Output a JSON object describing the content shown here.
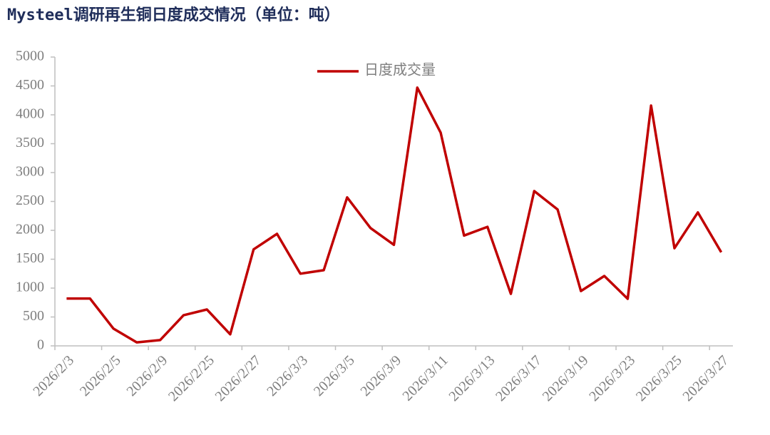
{
  "chart_data": {
    "type": "line",
    "title": "Mysteel调研再生铜日度成交情况（单位：吨）",
    "categories": [
      "2026/2/3",
      null,
      "2026/2/5",
      null,
      "2026/2/9",
      null,
      "2026/2/25",
      null,
      "2026/2/27",
      null,
      "2026/3/3",
      null,
      "2026/3/5",
      null,
      "2026/3/9",
      null,
      "2026/3/11",
      null,
      "2026/3/13",
      null,
      "2026/3/17",
      null,
      "2026/3/19",
      null,
      "2026/3/23",
      null,
      "2026/3/25",
      null,
      "2026/3/27"
    ],
    "series": [
      {
        "name": "日度成交量",
        "color": "#c00000",
        "values": [
          820,
          820,
          300,
          60,
          100,
          530,
          630,
          200,
          1670,
          1940,
          1250,
          1310,
          2570,
          2040,
          1750,
          4470,
          3690,
          1910,
          2060,
          900,
          2680,
          2360,
          950,
          1210,
          815,
          4160,
          1690,
          2310,
          1620
        ]
      }
    ],
    "ylim": [
      0,
      5000
    ],
    "yticks": [
      0,
      500,
      1000,
      1500,
      2000,
      2500,
      3000,
      3500,
      4000,
      4500,
      5000
    ],
    "legend": "top"
  }
}
